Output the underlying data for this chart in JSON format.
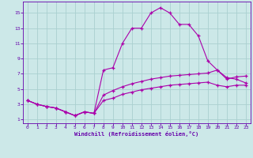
{
  "xlabel": "Windchill (Refroidissement éolien,°C)",
  "background_color": "#cce8e8",
  "grid_color": "#aad0d0",
  "line_color": "#aa00aa",
  "spine_color": "#6600aa",
  "xlim": [
    -0.5,
    23.5
  ],
  "ylim": [
    0.5,
    16.5
  ],
  "x_ticks": [
    0,
    1,
    2,
    3,
    4,
    5,
    6,
    7,
    8,
    9,
    10,
    11,
    12,
    13,
    14,
    15,
    16,
    17,
    18,
    19,
    20,
    21,
    22,
    23
  ],
  "y_ticks": [
    1,
    3,
    5,
    7,
    9,
    11,
    13,
    15
  ],
  "series": {
    "main": {
      "x": [
        0,
        1,
        2,
        3,
        4,
        5,
        6,
        7,
        8,
        9,
        10,
        11,
        12,
        13,
        14,
        15,
        16,
        17,
        18,
        19,
        20,
        21,
        22,
        23
      ],
      "y": [
        3.5,
        3.0,
        2.7,
        2.5,
        2.0,
        1.5,
        2.0,
        1.8,
        7.5,
        7.8,
        11.0,
        13.0,
        13.0,
        15.0,
        15.7,
        15.0,
        13.5,
        13.5,
        12.0,
        8.7,
        7.5,
        6.3,
        6.6,
        6.7
      ]
    },
    "lower1": {
      "x": [
        0,
        1,
        2,
        3,
        4,
        5,
        6,
        7,
        8,
        9,
        10,
        11,
        12,
        13,
        14,
        15,
        16,
        17,
        18,
        19,
        20,
        21,
        22,
        23
      ],
      "y": [
        3.5,
        3.0,
        2.7,
        2.5,
        2.0,
        1.5,
        2.0,
        1.8,
        4.2,
        4.8,
        5.3,
        5.7,
        6.0,
        6.3,
        6.5,
        6.7,
        6.8,
        6.9,
        7.0,
        7.1,
        7.5,
        6.5,
        6.3,
        5.8
      ]
    },
    "lower2": {
      "x": [
        0,
        1,
        2,
        3,
        4,
        5,
        6,
        7,
        8,
        9,
        10,
        11,
        12,
        13,
        14,
        15,
        16,
        17,
        18,
        19,
        20,
        21,
        22,
        23
      ],
      "y": [
        3.5,
        3.0,
        2.7,
        2.5,
        2.0,
        1.5,
        2.0,
        1.8,
        3.5,
        3.8,
        4.3,
        4.6,
        4.9,
        5.1,
        5.3,
        5.5,
        5.6,
        5.7,
        5.8,
        5.9,
        5.5,
        5.3,
        5.5,
        5.5
      ]
    }
  }
}
